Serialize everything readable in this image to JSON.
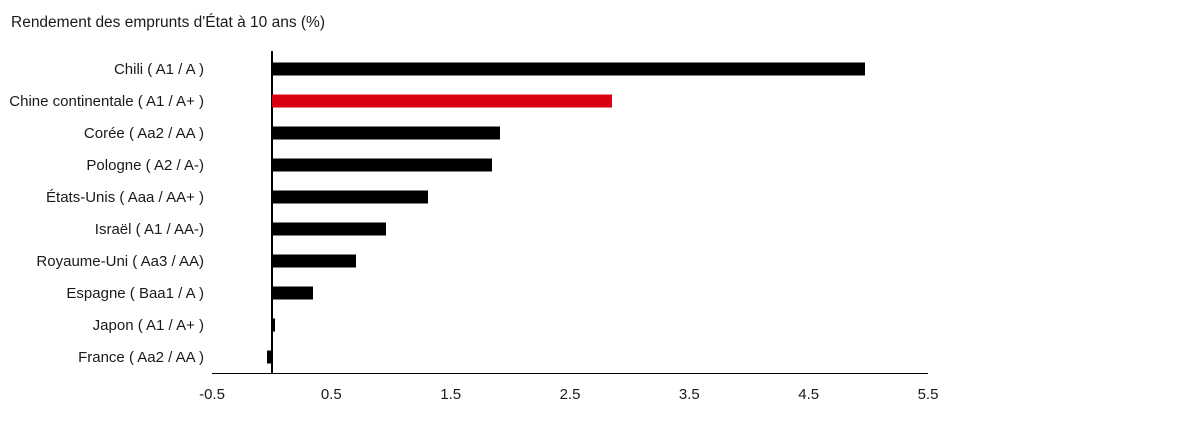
{
  "chart_data": {
    "type": "bar",
    "orientation": "horizontal",
    "title": "Rendement des emprunts d'État à 10 ans (%)",
    "categories": [
      "Chili ( A1 / A )",
      "Chine continentale ( A1 / A+ )",
      "Corée ( Aa2 / AA )",
      "Pologne ( A2 / A-)",
      "États-Unis ( Aaa / AA+ )",
      "Israël ( A1 / AA-)",
      "Royaume-Uni ( Aa3 / AA)",
      "Espagne ( Baa1 / A )",
      "Japon ( A1 / A+ )",
      "France ( Aa2 / AA )"
    ],
    "values": [
      4.97,
      2.85,
      1.91,
      1.85,
      1.31,
      0.96,
      0.71,
      0.35,
      0.03,
      -0.04
    ],
    "highlight_index": 1,
    "bar_color": "#000000",
    "highlight_color": "#db0011",
    "xlim": [
      -0.5,
      5.5
    ],
    "xtick_labels": [
      "-0.5",
      "0.5",
      "1.5",
      "2.5",
      "3.5",
      "4.5",
      "5.5"
    ],
    "grid": false,
    "legend": "none",
    "xlabel": "",
    "ylabel": ""
  }
}
